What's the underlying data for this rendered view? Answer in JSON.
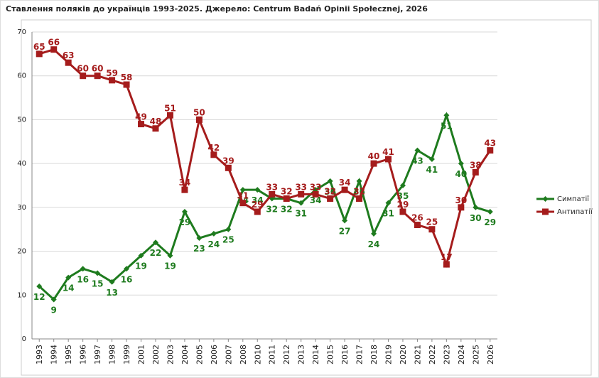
{
  "chart_data": {
    "type": "line",
    "title": "Ставлення поляків до українців 1993-2025. Джерело: Centrum Badań Opinii Społecznej, 2026",
    "categories": [
      "1993",
      "1994",
      "1995",
      "1996",
      "1997",
      "1998",
      "1999",
      "2001",
      "2002",
      "2003",
      "2004",
      "2005",
      "2006",
      "2007",
      "2008",
      "2010",
      "2011",
      "2012",
      "2013",
      "2014",
      "2015",
      "2016",
      "2017",
      "2018",
      "2019",
      "2020",
      "2021",
      "2022",
      "2023",
      "2024",
      "2025",
      "2026"
    ],
    "series": [
      {
        "name": "Симпатії",
        "color": "#1e7b1e",
        "marker": "diamond",
        "values": [
          12,
          9,
          14,
          16,
          15,
          13,
          16,
          19,
          22,
          19,
          29,
          23,
          24,
          25,
          34,
          34,
          32,
          32,
          31,
          34,
          36,
          27,
          36,
          24,
          31,
          35,
          43,
          41,
          51,
          40,
          30,
          29
        ]
      },
      {
        "name": "Антипатії",
        "color": "#a51c1c",
        "marker": "square",
        "values": [
          65,
          66,
          63,
          60,
          60,
          59,
          58,
          49,
          48,
          51,
          34,
          50,
          42,
          39,
          31,
          29,
          33,
          32,
          33,
          33,
          32,
          34,
          32,
          40,
          41,
          29,
          26,
          25,
          17,
          30,
          38,
          43
        ]
      }
    ],
    "ylim": [
      0,
      70
    ],
    "yticks": [
      0,
      10,
      20,
      30,
      40,
      50,
      60,
      70
    ],
    "grid": true,
    "legend": "right"
  }
}
